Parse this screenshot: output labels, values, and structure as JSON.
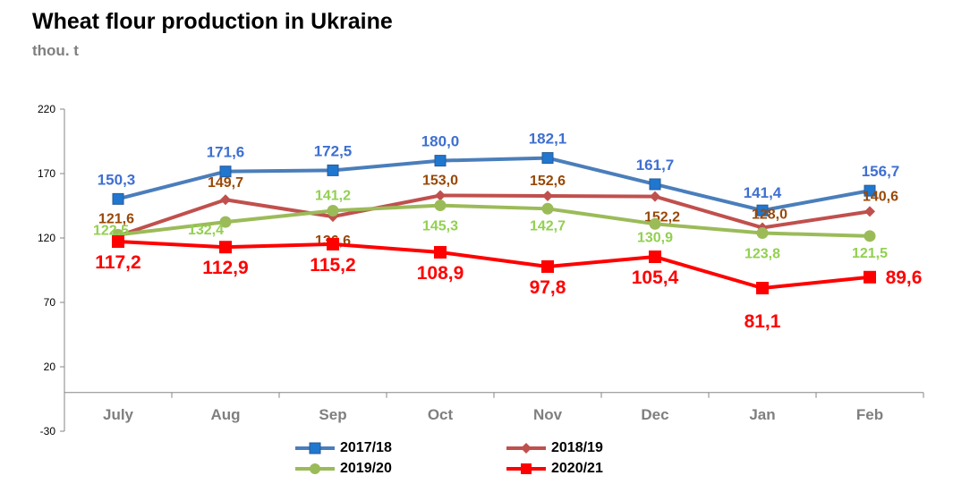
{
  "title": "Wheat flour production in Ukraine",
  "subtitle": "thou. t",
  "chart_data": {
    "type": "line",
    "categories": [
      "July",
      "Aug",
      "Sep",
      "Oct",
      "Nov",
      "Dec",
      "Jan",
      "Feb"
    ],
    "ylim": [
      -30,
      220
    ],
    "yticks": [
      "220",
      "170",
      "120",
      "70",
      "20",
      "-30"
    ],
    "grid": false,
    "legend_position": "bottom",
    "series": [
      {
        "name": "2017/18",
        "color": "#4a7ebb",
        "marker": "square",
        "values": [
          150.3,
          171.6,
          172.5,
          180.0,
          182.1,
          161.7,
          141.4,
          156.7
        ],
        "labels": [
          "150,3",
          "171,6",
          "172,5",
          "180,0",
          "182,1",
          "161,7",
          "141,4",
          "156,7"
        ],
        "label_color": "#3f6fd1"
      },
      {
        "name": "2018/19",
        "color": "#c0504d",
        "marker": "diamond",
        "values": [
          121.6,
          149.7,
          136.6,
          153.0,
          152.6,
          152.2,
          128.0,
          140.6
        ],
        "labels": [
          "121,6",
          "149,7",
          "136,6",
          "153,0",
          "152,6",
          "152,2",
          "128,0",
          "140,6"
        ],
        "label_color": "#984807"
      },
      {
        "name": "2019/20",
        "color": "#9bbb59",
        "marker": "circle",
        "values": [
          122.5,
          132.4,
          141.2,
          145.3,
          142.7,
          130.9,
          123.8,
          121.5
        ],
        "labels": [
          "122,5",
          "132,4",
          "141,2",
          "145,3",
          "142,7",
          "130,9",
          "123,8",
          "121,5"
        ],
        "label_color": "#92d050"
      },
      {
        "name": "2020/21",
        "color": "#ff0000",
        "marker": "square",
        "values": [
          117.2,
          112.9,
          115.2,
          108.9,
          97.8,
          105.4,
          81.1,
          89.6
        ],
        "labels": [
          "117,2",
          "112,9",
          "115,2",
          "108,9",
          "97,8",
          "105,4",
          "81,1",
          "89,6"
        ],
        "label_color": "#ff0000"
      }
    ]
  }
}
